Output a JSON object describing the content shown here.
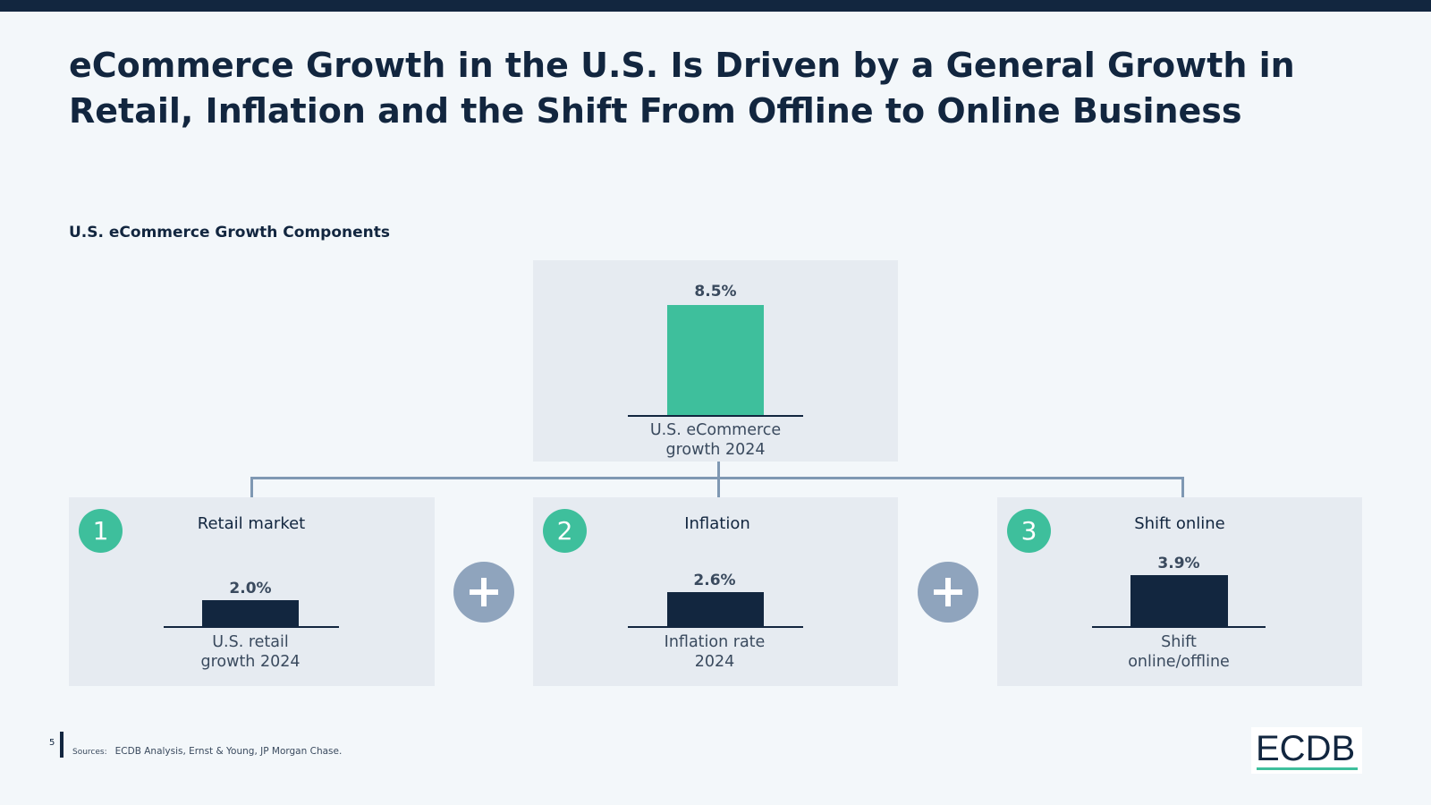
{
  "title": "eCommerce Growth in the U.S. Is Driven by a General Growth in Retail, Inflation and the Shift From Offline to Online Business",
  "subtitle": "U.S. eCommerce Growth Components",
  "colors": {
    "accent": "#3ebf9c",
    "navy": "#12263f",
    "panel": "#e6ebf1",
    "plus": "#8fa4bd",
    "connector": "#7f98b3"
  },
  "chart_data": [
    {
      "type": "bar",
      "title": "U.S. eCommerce growth 2024",
      "categories": [
        "U.S. eCommerce growth 2024"
      ],
      "values": [
        8.5
      ],
      "value_label": "8.5%",
      "label_lines": [
        "U.S. eCommerce",
        "growth 2024"
      ],
      "color": "#3ebf9c"
    },
    {
      "type": "bar",
      "number": "1",
      "title": "Retail market",
      "categories": [
        "U.S. retail growth 2024"
      ],
      "values": [
        2.0
      ],
      "value_label": "2.0%",
      "label_lines": [
        "U.S. retail",
        "growth 2024"
      ],
      "color": "#12263f"
    },
    {
      "type": "bar",
      "number": "2",
      "title": "Inflation",
      "categories": [
        "Inflation rate 2024"
      ],
      "values": [
        2.6
      ],
      "value_label": "2.6%",
      "label_lines": [
        "Inflation rate",
        "2024"
      ],
      "color": "#12263f"
    },
    {
      "type": "bar",
      "number": "3",
      "title": "Shift online",
      "categories": [
        "Shift online/offline"
      ],
      "values": [
        3.9
      ],
      "value_label": "3.9%",
      "label_lines": [
        "Shift",
        "online/offline"
      ],
      "color": "#12263f"
    }
  ],
  "operators": [
    "plus-icon",
    "plus-icon"
  ],
  "footer": {
    "page_number": "5",
    "sources_label": "Sources:",
    "sources_text": "ECDB Analysis, Ernst & Young, JP Morgan Chase."
  },
  "logo": {
    "text": "ECDB"
  }
}
